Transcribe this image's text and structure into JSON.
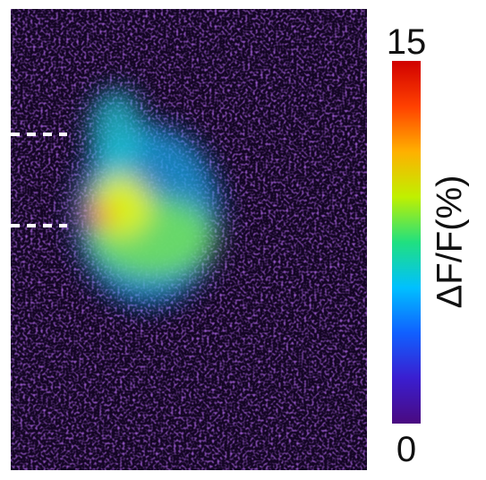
{
  "chart_data": {
    "type": "heatmap",
    "colorbar": {
      "label": "ΔF/F(%)",
      "lim": [
        0,
        15
      ],
      "ticks": [
        0,
        15
      ],
      "colors": [
        "#4a0a80",
        "#3a1ed0",
        "#1060ff",
        "#00c0ff",
        "#20e080",
        "#c0f000",
        "#ffb000",
        "#ff4000",
        "#d00000"
      ]
    }
  }
}
